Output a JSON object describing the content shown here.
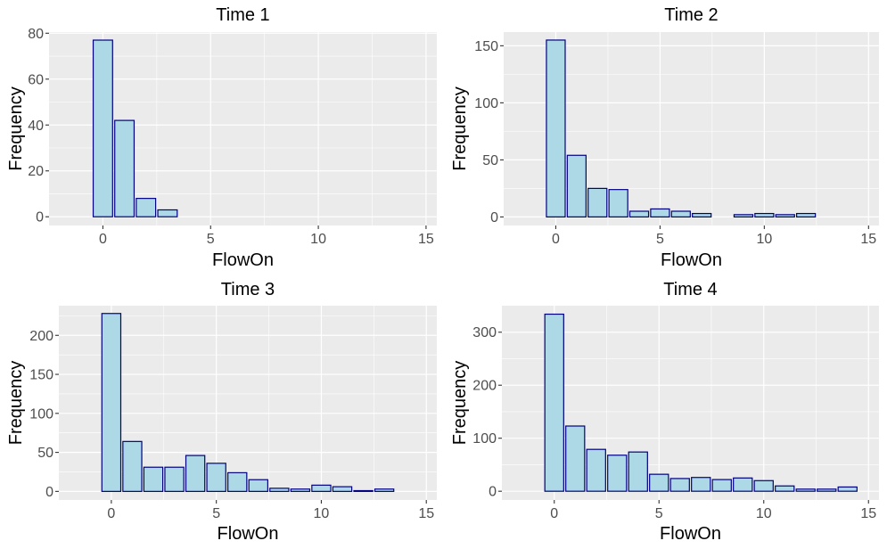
{
  "colors": {
    "panel_bg": "#EBEBEB",
    "grid_major": "#FFFFFF",
    "bar_fill": "#ADD8E6",
    "bar_stroke": "#000080",
    "tick_text": "#4D4D4D",
    "tick_mark": "#333333"
  },
  "chart_data": [
    {
      "type": "bar",
      "title": "Time 1",
      "xlabel": "FlowOn",
      "ylabel": "Frequency",
      "xlim": [
        -2.5,
        15.5
      ],
      "ylim": [
        -3.8,
        80.5
      ],
      "xticks": [
        0,
        5,
        10,
        15
      ],
      "yticks": [
        0,
        20,
        40,
        60,
        80
      ],
      "grid": true,
      "x": [
        0,
        1,
        2,
        3
      ],
      "values": [
        77,
        42,
        8,
        3
      ]
    },
    {
      "type": "bar",
      "title": "Time 2",
      "xlabel": "FlowOn",
      "ylabel": "Frequency",
      "xlim": [
        -2.5,
        15.5
      ],
      "ylim": [
        -7.5,
        162
      ],
      "xticks": [
        0,
        5,
        10,
        15
      ],
      "yticks": [
        0,
        50,
        100,
        150
      ],
      "grid": true,
      "x": [
        0,
        1,
        2,
        3,
        4,
        5,
        6,
        7,
        9,
        10,
        11,
        12
      ],
      "values": [
        155,
        54,
        25,
        24,
        5,
        7,
        5,
        3,
        2,
        3,
        2,
        3
      ]
    },
    {
      "type": "bar",
      "title": "Time 3",
      "xlabel": "FlowOn",
      "ylabel": "Frequency",
      "xlim": [
        -2.5,
        15.5
      ],
      "ylim": [
        -11,
        238
      ],
      "xticks": [
        0,
        5,
        10,
        15
      ],
      "yticks": [
        0,
        50,
        100,
        150,
        200
      ],
      "grid": true,
      "x": [
        0,
        1,
        2,
        3,
        4,
        5,
        6,
        7,
        8,
        9,
        10,
        11,
        12,
        13
      ],
      "values": [
        228,
        64,
        31,
        31,
        46,
        36,
        24,
        15,
        4,
        3,
        8,
        6,
        1,
        3
      ]
    },
    {
      "type": "bar",
      "title": "Time 4",
      "xlabel": "FlowOn",
      "ylabel": "Frequency",
      "xlim": [
        -2.5,
        15.5
      ],
      "ylim": [
        -16.5,
        350
      ],
      "xticks": [
        0,
        5,
        10,
        15
      ],
      "yticks": [
        0,
        100,
        200,
        300
      ],
      "grid": true,
      "x": [
        0,
        1,
        2,
        3,
        4,
        5,
        6,
        7,
        8,
        9,
        10,
        11,
        12,
        13,
        14
      ],
      "values": [
        334,
        123,
        79,
        68,
        74,
        32,
        24,
        26,
        22,
        25,
        20,
        10,
        4,
        4,
        8
      ]
    }
  ]
}
